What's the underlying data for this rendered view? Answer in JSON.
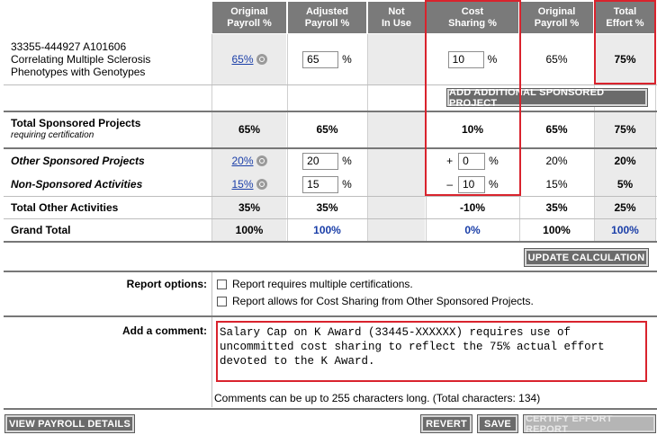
{
  "headers": {
    "original_payroll": "Original\nPayroll %",
    "adjusted_payroll": "Adjusted\nPayroll %",
    "not_in_use": "Not\nIn Use",
    "cost_sharing": "Cost\nSharing %",
    "original_payroll_2": "Original\nPayroll %",
    "total_effort": "Total\nEffort %"
  },
  "project": {
    "line1": "33355-444927 A101606",
    "line2": "Correlating Multiple Sclerosis",
    "line3": "Phenotypes with Genotypes",
    "original_link": "65%",
    "adjusted_value": "65",
    "pct_sign": "%",
    "cost_sharing_value": "10",
    "original2": "65%",
    "total_effort": "75%"
  },
  "add_project_button": "ADD ADDITIONAL SPONSORED PROJECT",
  "total_sponsored": {
    "label": "Total Sponsored Projects",
    "sublabel": "requiring certification",
    "original": "65%",
    "adjusted": "65%",
    "cost_sharing": "10%",
    "original2": "65%",
    "total": "75%"
  },
  "other_sponsored": {
    "label": "Other Sponsored Projects",
    "original_link": "20%",
    "adjusted_value": "20",
    "sign": "+",
    "cost_sharing_value": "0",
    "original2": "20%",
    "total": "20%"
  },
  "non_sponsored": {
    "label": "Non-Sponsored Activities",
    "original_link": "15%",
    "adjusted_value": "15",
    "sign": "–",
    "cost_sharing_value": "10",
    "original2": "15%",
    "total": "5%"
  },
  "total_other": {
    "label": "Total Other Activities",
    "original": "35%",
    "adjusted": "35%",
    "cost_sharing": "-10%",
    "original2": "35%",
    "total": "25%"
  },
  "grand_total": {
    "label": "Grand Total",
    "original": "100%",
    "adjusted": "100%",
    "cost_sharing": "0%",
    "original2": "100%",
    "total": "100%"
  },
  "update_button": "UPDATE CALCULATION",
  "report_options": {
    "label": "Report options:",
    "option1": "Report requires multiple certifications.",
    "option2": "Report allows for Cost Sharing from Other Sponsored Projects."
  },
  "comment": {
    "label": "Add a comment:",
    "text": "Salary Cap on K Award (33445-XXXXXX) requires use of\nuncommitted cost sharing to reflect the 75% actual effort\ndevoted to the K Award.",
    "hint": "Comments can be up to 255 characters long. (Total characters: 134)"
  },
  "footer": {
    "view_payroll": "VIEW PAYROLL DETAILS",
    "revert": "REVERT",
    "save": "SAVE",
    "certify": "CERTIFY EFFORT REPORT"
  },
  "colors": {
    "header_bg": "#7a7a7a",
    "highlight_red": "#d9232d",
    "link_blue": "#1a3ea8"
  }
}
